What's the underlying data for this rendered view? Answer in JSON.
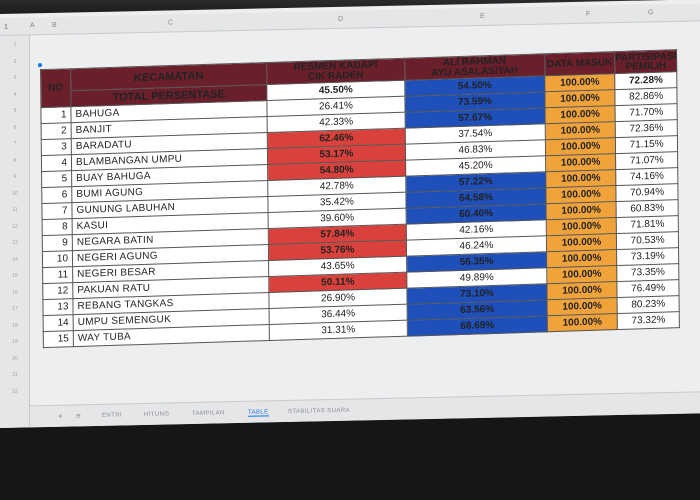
{
  "spreadsheet": {
    "name_box": "1",
    "columns": [
      "A",
      "B",
      "C",
      "D",
      "E",
      "F",
      "G"
    ],
    "rows": [
      "1",
      "2",
      "3",
      "4",
      "5",
      "6",
      "7",
      "8",
      "9",
      "10",
      "11",
      "12",
      "13",
      "14",
      "15",
      "16",
      "17",
      "18",
      "19",
      "20",
      "21",
      "22"
    ]
  },
  "table": {
    "header": {
      "no": "NO",
      "kecamatan": "KECAMATAN",
      "total_label": "TOTAL PERSENTASE",
      "candidate1": "RESMEN KADAPI\nCIK RADEN",
      "candidate2": "ALI RAHMAN\nAYU ASALASIYAH",
      "data_masuk": "DATA MASUK",
      "partisipasi": "PARTISIPASI\nPEMILIH"
    },
    "totals": {
      "candidate1": "45.50%",
      "candidate2": "54.50%",
      "data_masuk": "100.00%",
      "partisipasi": "72.28%"
    },
    "rows": [
      {
        "no": "1",
        "name": "BAHUGA",
        "c1": "26.41%",
        "c2": "73.59%",
        "dm": "100.00%",
        "pp": "82.86%",
        "winner": "c2"
      },
      {
        "no": "2",
        "name": "BANJIT",
        "c1": "42.33%",
        "c2": "57.67%",
        "dm": "100.00%",
        "pp": "71.70%",
        "winner": "c2"
      },
      {
        "no": "3",
        "name": "BARADATU",
        "c1": "62.46%",
        "c2": "37.54%",
        "dm": "100.00%",
        "pp": "72.36%",
        "winner": "c1"
      },
      {
        "no": "4",
        "name": "BLAMBANGAN UMPU",
        "c1": "53.17%",
        "c2": "46.83%",
        "dm": "100.00%",
        "pp": "71.15%",
        "winner": "c1"
      },
      {
        "no": "5",
        "name": "BUAY BAHUGA",
        "c1": "54.80%",
        "c2": "45.20%",
        "dm": "100.00%",
        "pp": "71.07%",
        "winner": "c1"
      },
      {
        "no": "6",
        "name": "BUMI AGUNG",
        "c1": "42.78%",
        "c2": "57.22%",
        "dm": "100.00%",
        "pp": "74.16%",
        "winner": "c2"
      },
      {
        "no": "7",
        "name": "GUNUNG LABUHAN",
        "c1": "35.42%",
        "c2": "64.58%",
        "dm": "100.00%",
        "pp": "70.94%",
        "winner": "c2"
      },
      {
        "no": "8",
        "name": "KASUI",
        "c1": "39.60%",
        "c2": "60.40%",
        "dm": "100.00%",
        "pp": "60.83%",
        "winner": "c2"
      },
      {
        "no": "9",
        "name": "NEGARA BATIN",
        "c1": "57.84%",
        "c2": "42.16%",
        "dm": "100.00%",
        "pp": "71.81%",
        "winner": "c1"
      },
      {
        "no": "10",
        "name": "NEGERI AGUNG",
        "c1": "53.76%",
        "c2": "46.24%",
        "dm": "100.00%",
        "pp": "70.53%",
        "winner": "c1"
      },
      {
        "no": "11",
        "name": "NEGERI BESAR",
        "c1": "43.65%",
        "c2": "56.35%",
        "dm": "100.00%",
        "pp": "73.19%",
        "winner": "c2"
      },
      {
        "no": "12",
        "name": "PAKUAN RATU",
        "c1": "50.11%",
        "c2": "49.89%",
        "dm": "100.00%",
        "pp": "73.35%",
        "winner": "c1"
      },
      {
        "no": "13",
        "name": "REBANG TANGKAS",
        "c1": "26.90%",
        "c2": "73.10%",
        "dm": "100.00%",
        "pp": "76.49%",
        "winner": "c2"
      },
      {
        "no": "14",
        "name": "UMPU SEMENGUK",
        "c1": "36.44%",
        "c2": "63.56%",
        "dm": "100.00%",
        "pp": "80.23%",
        "winner": "c2"
      },
      {
        "no": "15",
        "name": "WAY TUBA",
        "c1": "31.31%",
        "c2": "68.69%",
        "dm": "100.00%",
        "pp": "73.32%",
        "winner": "c2"
      }
    ]
  },
  "sheet_tabs": [
    "ENTRI",
    "HITUNG",
    "TAMPILAN",
    "TABLE",
    "STABILITAS SUARA"
  ],
  "active_tab": "TABLE",
  "colors": {
    "header": "#6b1f2b",
    "candidate1_win": "#d9423c",
    "candidate2_win": "#1f4fb8",
    "data_masuk": "#f0a33a"
  }
}
